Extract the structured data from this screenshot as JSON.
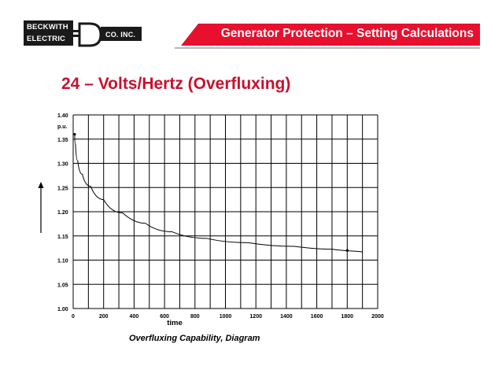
{
  "header": {
    "logo_line1": "BECKWITH",
    "logo_line2": "ELECTRIC",
    "logo_suffix": "CO. INC.",
    "logo_icon": "beckwith-d-plug-logo",
    "banner_title": "Generator Protection – Setting Calculations",
    "banner_color": "#e8102e",
    "logo_bg_color": "#1a1a1a"
  },
  "slide": {
    "title": "24 – Volts/Hertz (Overfluxing)",
    "title_color": "#c8102e",
    "caption": "Overfluxing Capability, Diagram"
  },
  "chart_data": {
    "type": "line",
    "title": "",
    "xlabel": "time",
    "ylabel": "p.u.",
    "xlim": [
      0,
      2000
    ],
    "ylim": [
      1.0,
      1.4
    ],
    "grid": true,
    "x_ticks": [
      "0",
      "200",
      "400",
      "600",
      "800",
      "1000",
      "1200",
      "1400",
      "1600",
      "1800",
      "2000"
    ],
    "y_ticks": [
      "1.00",
      "1.05",
      "1.10",
      "1.15",
      "1.20",
      "1.25",
      "1.30",
      "1.35",
      "1.40"
    ],
    "series": [
      {
        "x": [
          10,
          20,
          40,
          80,
          150,
          250,
          400,
          550,
          750,
          1000,
          1300,
          1600,
          1800,
          1900
        ],
        "y": [
          1.36,
          1.32,
          1.29,
          1.265,
          1.24,
          1.21,
          1.185,
          1.167,
          1.15,
          1.14,
          1.132,
          1.125,
          1.12,
          1.117
        ]
      }
    ],
    "markers": [
      {
        "x": 10,
        "y": 1.36
      },
      {
        "x": 1800,
        "y": 1.12
      }
    ],
    "y_arrow": true
  }
}
